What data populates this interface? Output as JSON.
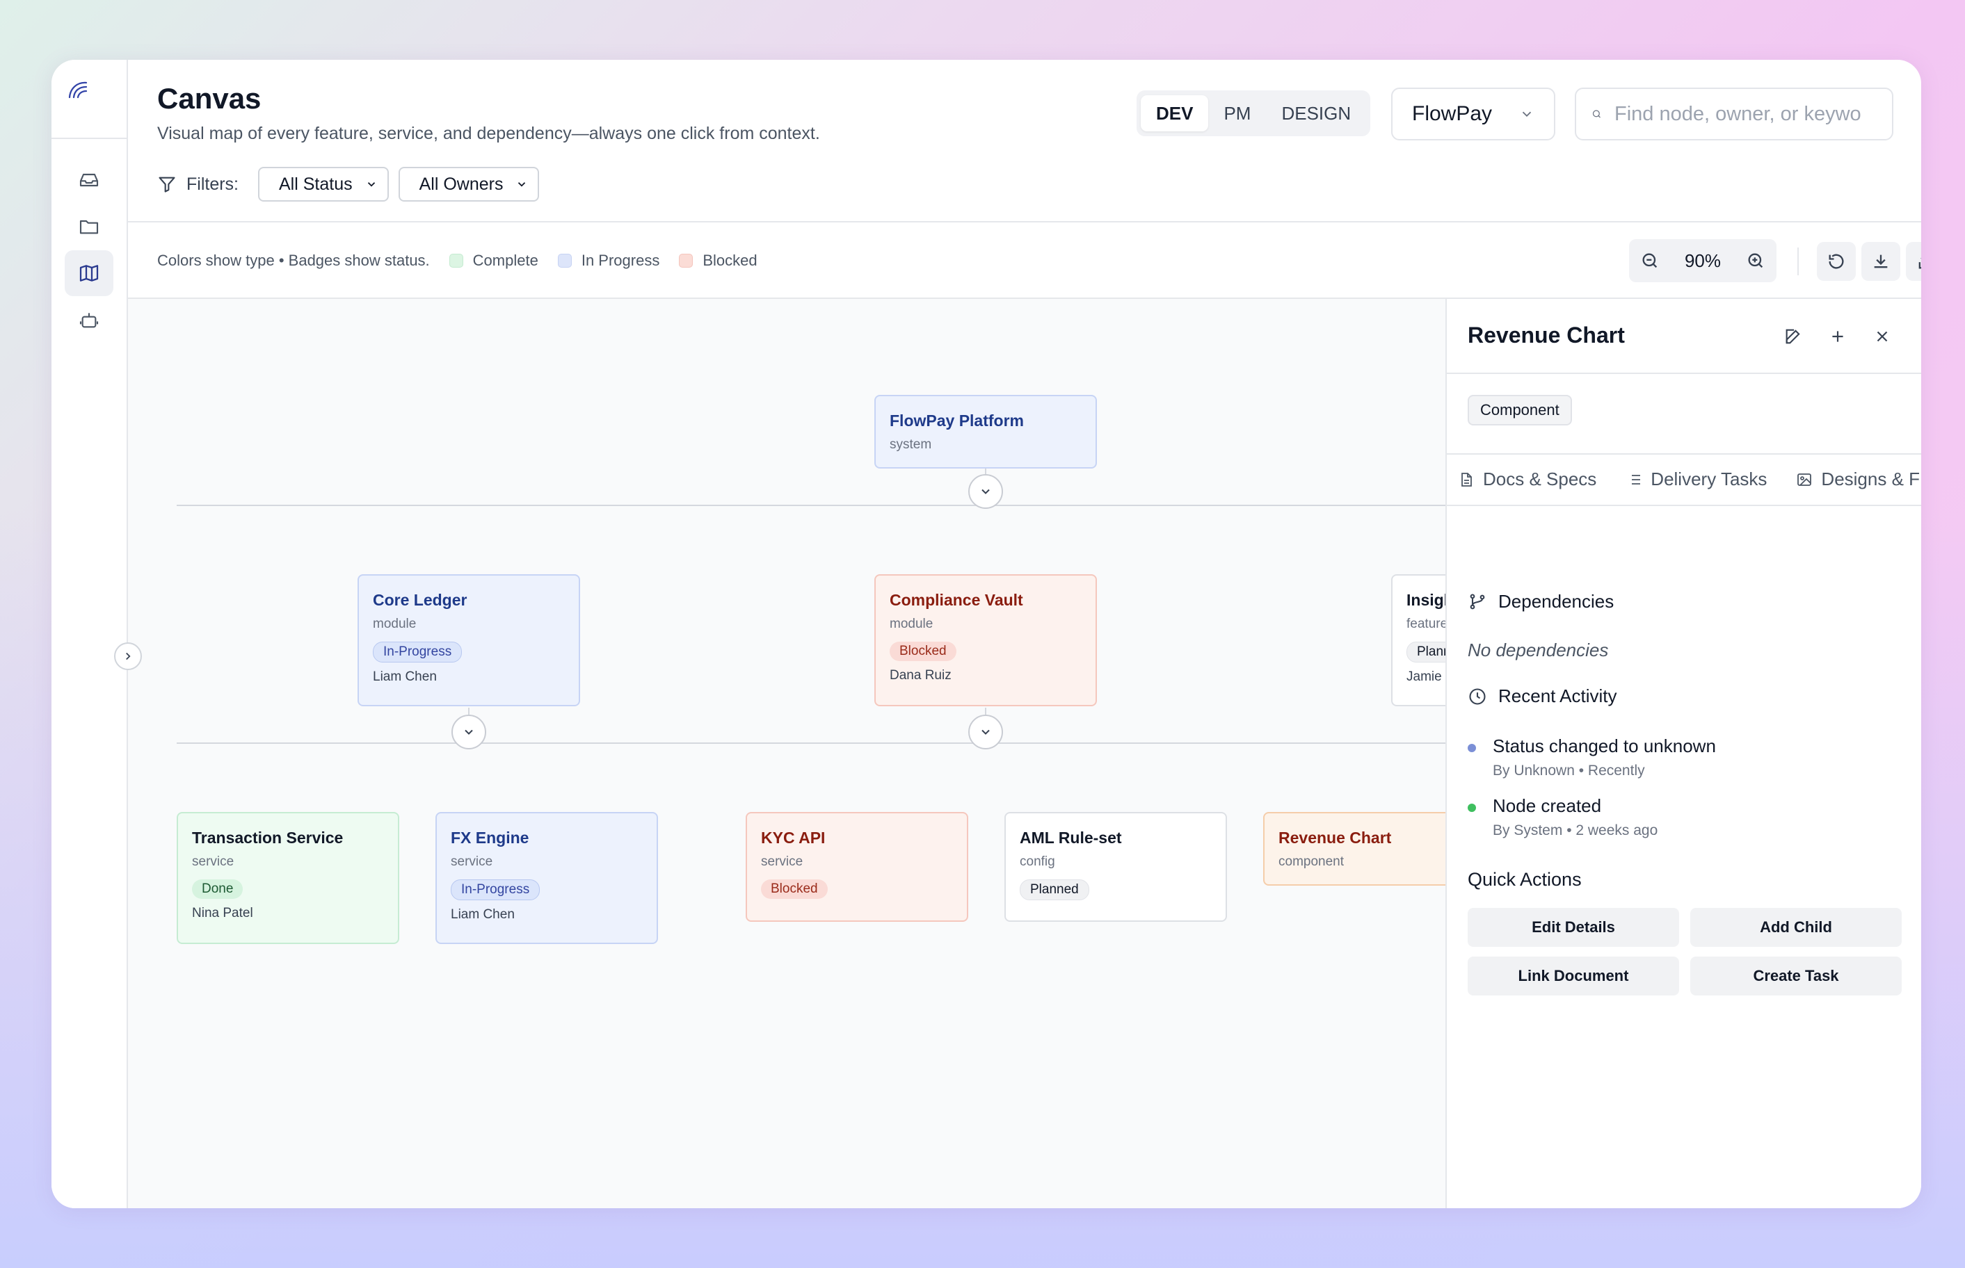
{
  "app": {
    "title": "Canvas",
    "subtitle": "Visual map of every feature, service, and dependency—always one click from context."
  },
  "rail": {
    "items": [
      {
        "name": "inbox-icon"
      },
      {
        "name": "folder-icon"
      },
      {
        "name": "map-icon",
        "active": true
      },
      {
        "name": "bot-icon"
      }
    ]
  },
  "roles": {
    "items": [
      "DEV",
      "PM",
      "DESIGN"
    ],
    "active": "DEV"
  },
  "project": {
    "selected": "FlowPay"
  },
  "search": {
    "placeholder": "Find node, owner, or keywo"
  },
  "filters": {
    "label": "Filters:",
    "status": "All Status",
    "owners": "All Owners"
  },
  "legend": {
    "hint": "Colors show type • Badges show status.",
    "items": [
      {
        "label": "Complete",
        "color": "#dcf5e3"
      },
      {
        "label": "In Progress",
        "color": "#dde5fa"
      },
      {
        "label": "Blocked",
        "color": "#fbdcd6"
      }
    ]
  },
  "zoom": {
    "level": "90%"
  },
  "nodes": {
    "root": {
      "title": "FlowPay Platform",
      "type": "system"
    },
    "core_ledger": {
      "title": "Core Ledger",
      "type": "module",
      "status": "In-Progress",
      "owner": "Liam Chen"
    },
    "compliance_vault": {
      "title": "Compliance Vault",
      "type": "module",
      "status": "Blocked",
      "owner": "Dana Ruiz"
    },
    "insights": {
      "title": "Insights Das",
      "type": "feature",
      "status": "Planned",
      "owner": "Jamie Lee"
    },
    "transaction_service": {
      "title": "Transaction Service",
      "type": "service",
      "status": "Done",
      "owner": "Nina Patel"
    },
    "fx_engine": {
      "title": "FX Engine",
      "type": "service",
      "status": "In-Progress",
      "owner": "Liam Chen"
    },
    "kyc_api": {
      "title": "KYC API",
      "type": "service",
      "status": "Blocked"
    },
    "aml_ruleset": {
      "title": "AML Rule-set",
      "type": "config",
      "status": "Planned"
    },
    "revenue_chart": {
      "title": "Revenue Chart",
      "type": "component"
    }
  },
  "panel": {
    "title": "Revenue Chart",
    "chip": "Component",
    "tabs": [
      "Docs & Specs",
      "Delivery Tasks",
      "Designs & F"
    ],
    "dependencies_title": "Dependencies",
    "no_dependencies": "No dependencies",
    "activity_title": "Recent Activity",
    "activity": [
      {
        "main": "Status changed to unknown",
        "sub": "By Unknown • Recently",
        "color": "#7b8fd6"
      },
      {
        "main": "Node created",
        "sub": "By System • 2 weeks ago",
        "color": "#3fbf5f"
      }
    ],
    "quick_actions_title": "Quick Actions",
    "actions": [
      "Edit Details",
      "Add Child",
      "Link Document",
      "Create Task"
    ]
  }
}
